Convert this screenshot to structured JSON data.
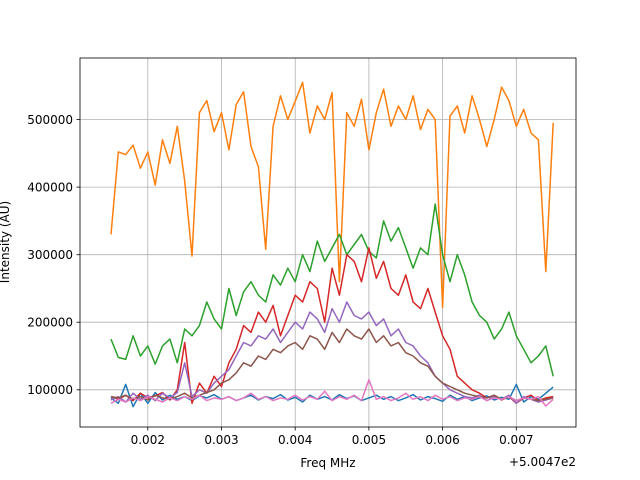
{
  "chart_data": {
    "type": "line",
    "title": "",
    "xlabel": "Freq MHz",
    "ylabel": "Intensity (AU)",
    "x_offset_label": "+5.0047e2",
    "x_offset": 500.47,
    "xlim": [
      0.00108,
      0.00781
    ],
    "ylim": [
      45000,
      591000
    ],
    "grid": true,
    "legend": "none",
    "x_ticks": [
      0.002,
      0.003,
      0.004,
      0.005,
      0.006,
      0.007
    ],
    "x_tick_labels": [
      "0.002",
      "0.003",
      "0.004",
      "0.005",
      "0.006",
      "0.007"
    ],
    "y_ticks": [
      100000,
      200000,
      300000,
      400000,
      500000
    ],
    "y_tick_labels": [
      "100000",
      "200000",
      "300000",
      "400000",
      "500000"
    ],
    "x": [
      0.0015,
      0.0016,
      0.0017,
      0.0018,
      0.0019,
      0.002,
      0.0021,
      0.0022,
      0.0023,
      0.0024,
      0.0025,
      0.0026,
      0.0027,
      0.0028,
      0.0029,
      0.003,
      0.0031,
      0.0032,
      0.0033,
      0.0034,
      0.0035,
      0.0036,
      0.0037,
      0.0038,
      0.0039,
      0.004,
      0.0041,
      0.0042,
      0.0043,
      0.0044,
      0.0045,
      0.0046,
      0.0047,
      0.0048,
      0.0049,
      0.005,
      0.0051,
      0.0052,
      0.0053,
      0.0054,
      0.0055,
      0.0056,
      0.0057,
      0.0058,
      0.0059,
      0.006,
      0.0061,
      0.0062,
      0.0063,
      0.0064,
      0.0065,
      0.0066,
      0.0067,
      0.0068,
      0.0069,
      0.007,
      0.0071,
      0.0072,
      0.0073,
      0.0074,
      0.0075
    ],
    "series": [
      {
        "color": "#1f77b4",
        "values": [
          88000,
          80000,
          108000,
          75000,
          95000,
          80000,
          96000,
          85000,
          92000,
          86000,
          90000,
          84000,
          91000,
          88000,
          93000,
          86000,
          90000,
          84000,
          88000,
          92000,
          85000,
          90000,
          87000,
          93000,
          85000,
          89000,
          82000,
          92000,
          86000,
          90000,
          85000,
          93000,
          87000,
          91000,
          84000,
          88000,
          92000,
          86000,
          90000,
          84000,
          88000,
          93000,
          85000,
          90000,
          87000,
          83000,
          92000,
          86000,
          90000,
          84000,
          88000,
          91000,
          85000,
          89000,
          86000,
          108000,
          82000,
          90000,
          86000,
          95000,
          104000
        ]
      },
      {
        "color": "#ff7f0e",
        "values": [
          330000,
          452000,
          448000,
          462000,
          428000,
          452000,
          403000,
          470000,
          435000,
          490000,
          409000,
          298000,
          510000,
          528000,
          482000,
          510000,
          455000,
          522000,
          541000,
          460000,
          430000,
          308000,
          490000,
          535000,
          500000,
          527000,
          555000,
          480000,
          520000,
          500000,
          540000,
          260000,
          510000,
          490000,
          530000,
          455000,
          510000,
          545000,
          490000,
          520000,
          500000,
          535000,
          485000,
          515000,
          500000,
          222000,
          505000,
          520000,
          480000,
          535000,
          500000,
          460000,
          500000,
          548000,
          528000,
          490000,
          515000,
          480000,
          470000,
          275000,
          495000
        ]
      },
      {
        "color": "#2ca02c",
        "values": [
          175000,
          148000,
          145000,
          180000,
          150000,
          165000,
          138000,
          165000,
          175000,
          140000,
          190000,
          180000,
          195000,
          230000,
          205000,
          190000,
          250000,
          210000,
          245000,
          260000,
          240000,
          230000,
          270000,
          255000,
          280000,
          260000,
          300000,
          275000,
          320000,
          290000,
          310000,
          330000,
          300000,
          315000,
          330000,
          305000,
          295000,
          350000,
          320000,
          340000,
          310000,
          280000,
          310000,
          300000,
          375000,
          300000,
          260000,
          300000,
          270000,
          230000,
          210000,
          200000,
          175000,
          190000,
          215000,
          180000,
          160000,
          140000,
          150000,
          165000,
          120000
        ]
      },
      {
        "color": "#d62728",
        "values": [
          90000,
          86000,
          92000,
          84000,
          95000,
          88000,
          91000,
          96000,
          85000,
          100000,
          170000,
          80000,
          110000,
          95000,
          120000,
          105000,
          140000,
          160000,
          195000,
          185000,
          215000,
          200000,
          225000,
          180000,
          210000,
          240000,
          230000,
          260000,
          250000,
          200000,
          280000,
          240000,
          300000,
          290000,
          260000,
          310000,
          265000,
          290000,
          250000,
          240000,
          270000,
          230000,
          220000,
          250000,
          215000,
          180000,
          160000,
          120000,
          110000,
          100000,
          95000,
          88000,
          92000,
          85000,
          90000,
          80000,
          88000,
          92000,
          84000,
          88000,
          90000
        ]
      },
      {
        "color": "#9467bd",
        "values": [
          85000,
          90000,
          82000,
          95000,
          86000,
          92000,
          84000,
          95000,
          88000,
          96000,
          140000,
          90000,
          100000,
          95000,
          110000,
          120000,
          130000,
          150000,
          170000,
          165000,
          180000,
          175000,
          190000,
          170000,
          185000,
          200000,
          190000,
          215000,
          205000,
          185000,
          220000,
          200000,
          230000,
          210000,
          205000,
          215000,
          195000,
          205000,
          180000,
          190000,
          170000,
          165000,
          150000,
          140000,
          120000,
          110000,
          100000,
          95000,
          90000,
          88000,
          92000,
          84000,
          90000,
          86000,
          92000,
          80000,
          90000,
          86000,
          82000,
          85000,
          88000
        ]
      },
      {
        "color": "#8c564b",
        "values": [
          90000,
          88000,
          92000,
          86000,
          90000,
          85000,
          92000,
          88000,
          86000,
          90000,
          95000,
          88000,
          92000,
          96000,
          100000,
          110000,
          115000,
          125000,
          140000,
          135000,
          150000,
          145000,
          160000,
          155000,
          165000,
          170000,
          160000,
          180000,
          175000,
          160000,
          185000,
          170000,
          190000,
          180000,
          175000,
          190000,
          170000,
          180000,
          165000,
          170000,
          155000,
          150000,
          140000,
          135000,
          120000,
          110000,
          105000,
          100000,
          95000,
          92000,
          90000,
          88000,
          92000,
          86000,
          90000,
          84000,
          88000,
          86000,
          84000,
          86000,
          88000
        ]
      },
      {
        "color": "#e377c2",
        "values": [
          80000,
          86000,
          82000,
          88000,
          84000,
          90000,
          86000,
          82000,
          88000,
          84000,
          90000,
          86000,
          92000,
          84000,
          88000,
          86000,
          90000,
          84000,
          88000,
          95000,
          86000,
          90000,
          84000,
          88000,
          86000,
          92000,
          85000,
          90000,
          86000,
          98000,
          84000,
          90000,
          86000,
          92000,
          84000,
          115000,
          86000,
          90000,
          84000,
          88000,
          95000,
          86000,
          90000,
          84000,
          92000,
          86000,
          90000,
          84000,
          88000,
          86000,
          90000,
          84000,
          88000,
          86000,
          90000,
          84000,
          88000,
          86000,
          90000,
          76000,
          86000
        ]
      }
    ]
  }
}
